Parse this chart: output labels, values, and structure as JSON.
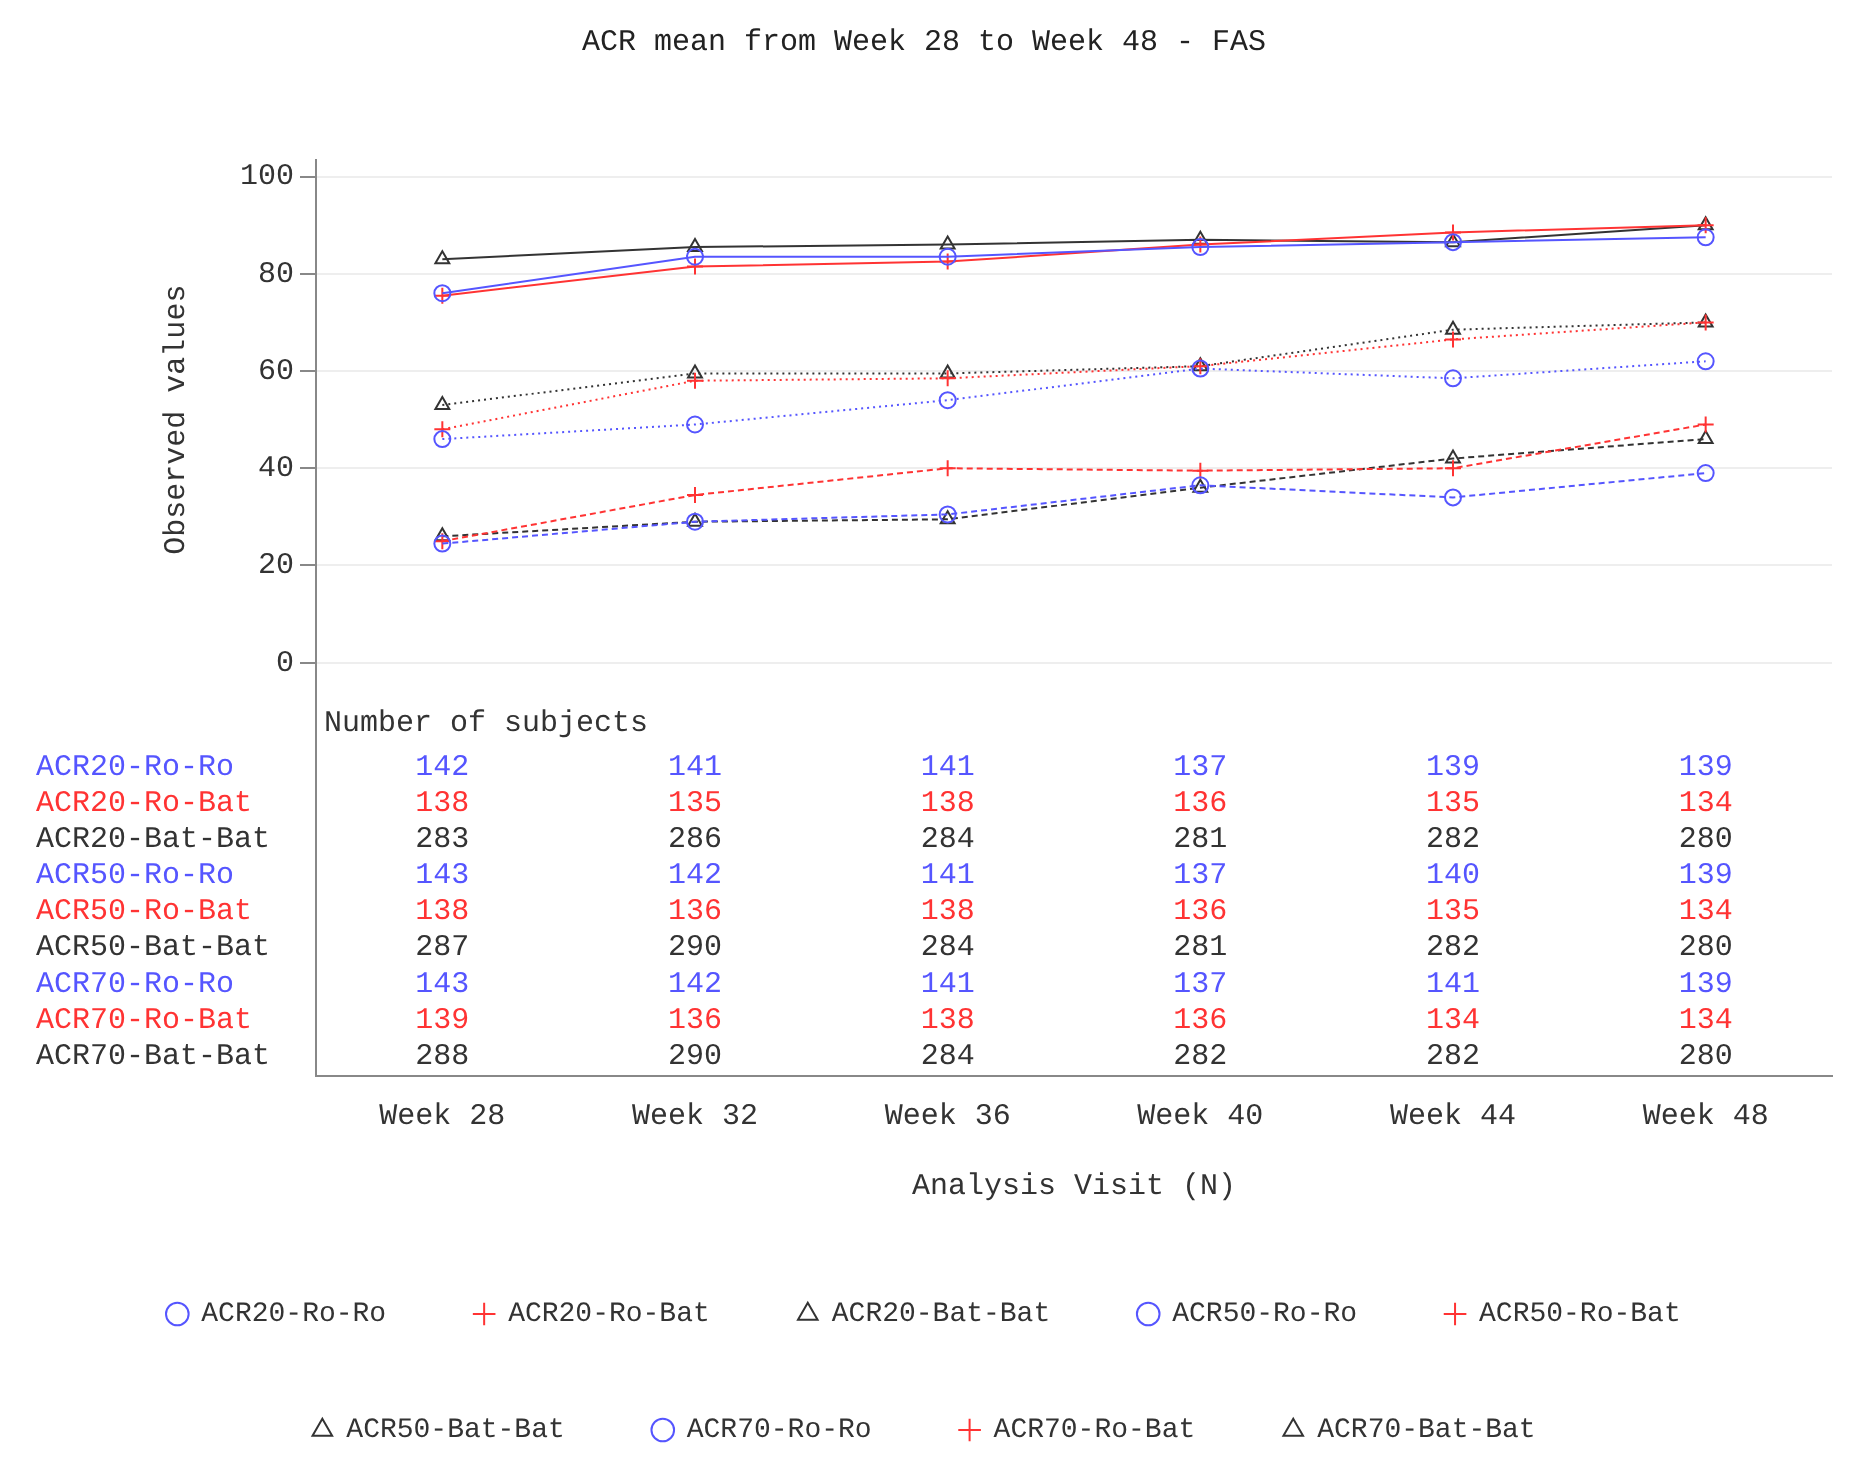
{
  "chart_data": {
    "type": "line",
    "title": "ACR mean from Week 28 to Week 48 - FAS",
    "xlabel": "Analysis Visit (N)",
    "ylabel": "Observed values",
    "categories": [
      "Week 28",
      "Week 32",
      "Week 36",
      "Week 40",
      "Week 44",
      "Week 48"
    ],
    "ylim": [
      -85,
      103.4
    ],
    "yticks": [
      0,
      20,
      40,
      60,
      80,
      100
    ],
    "grid": "y",
    "legend": "bottom",
    "annotations": [
      "Number of subjects",
      "ACR20-Ro-Ro",
      "142",
      "141",
      "141",
      "137",
      "139",
      "139",
      "ACR20-Ro-Bat",
      "138",
      "135",
      "138",
      "136",
      "135",
      "134",
      "ACR20-Bat-Bat",
      "283",
      "286",
      "284",
      "281",
      "282",
      "280",
      "ACR50-Ro-Ro",
      "143",
      "142",
      "141",
      "137",
      "140",
      "139",
      "ACR50-Ro-Bat",
      "138",
      "136",
      "138",
      "136",
      "135",
      "134",
      "ACR50-Bat-Bat",
      "287",
      "290",
      "284",
      "281",
      "282",
      "280",
      "ACR70-Ro-Ro",
      "143",
      "142",
      "141",
      "137",
      "141",
      "139",
      "ACR70-Ro-Bat",
      "139",
      "136",
      "138",
      "136",
      "134",
      "134",
      "ACR70-Bat-Bat",
      "288",
      "290",
      "284",
      "282",
      "282",
      "280"
    ],
    "series": [
      {
        "name": "ACR20-Ro-Ro",
        "color": "#5555ff",
        "marker": "circle",
        "line_style": "solid",
        "values": [
          76,
          83.5,
          83.5,
          85.5,
          86.5,
          87.5
        ]
      },
      {
        "name": "ACR20-Ro-Bat",
        "color": "#ff3333",
        "marker": "cross",
        "line_style": "solid",
        "values": [
          75.5,
          81.5,
          82.5,
          86,
          88.5,
          90
        ]
      },
      {
        "name": "ACR20-Bat-Bat",
        "color": "#333333",
        "marker": "triangle",
        "line_style": "solid",
        "values": [
          83,
          85.5,
          86,
          87,
          86.5,
          90
        ]
      },
      {
        "name": "ACR50-Ro-Ro",
        "color": "#5555ff",
        "marker": "circle",
        "line_style": "dotted",
        "values": [
          46,
          49,
          54,
          60.5,
          58.5,
          62
        ]
      },
      {
        "name": "ACR50-Ro-Bat",
        "color": "#ff3333",
        "marker": "cross",
        "line_style": "dotted",
        "values": [
          48,
          58,
          58.5,
          61,
          66.5,
          70
        ]
      },
      {
        "name": "ACR50-Bat-Bat",
        "color": "#333333",
        "marker": "triangle",
        "line_style": "dotted",
        "values": [
          53,
          59.5,
          59.5,
          61,
          68.5,
          70
        ]
      },
      {
        "name": "ACR70-Ro-Ro",
        "color": "#5555ff",
        "marker": "circle",
        "line_style": "dashed",
        "values": [
          24.5,
          29,
          30.5,
          36.5,
          34,
          39
        ]
      },
      {
        "name": "ACR70-Ro-Bat",
        "color": "#ff3333",
        "marker": "cross",
        "line_style": "dashed",
        "values": [
          25,
          34.5,
          40,
          39.5,
          40,
          49
        ]
      },
      {
        "name": "ACR70-Bat-Bat",
        "color": "#333333",
        "marker": "triangle",
        "line_style": "dashed",
        "values": [
          26,
          29,
          29.5,
          36,
          42,
          46
        ]
      }
    ]
  }
}
